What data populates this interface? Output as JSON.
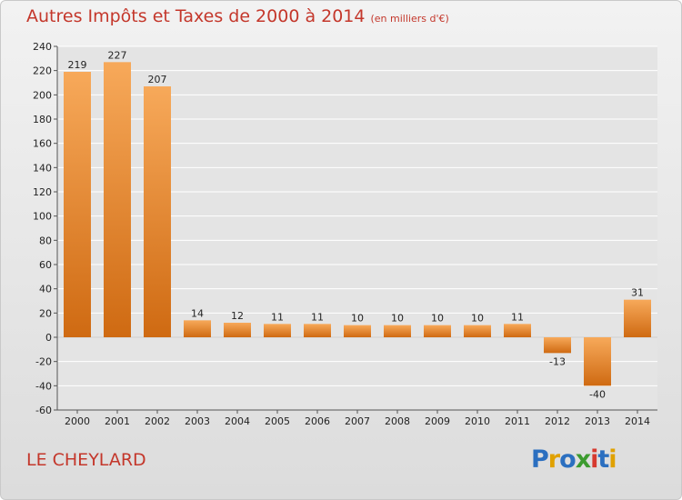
{
  "title": "Autres Impôts et Taxes de 2000 à 2014",
  "unit": "(en milliers d'€)",
  "commune": "LE CHEYLARD",
  "logo": {
    "text": "Proxiti",
    "colors": [
      "#2b6fc0",
      "#e0a100",
      "#2b6fc0",
      "#3c9b2f",
      "#d63a2f",
      "#2b6fc0",
      "#e0a100"
    ]
  },
  "colors": {
    "bar_light": "#f7a95a",
    "bar_dark": "#cf6a12",
    "grid": "#ffffff",
    "axis": "#555555"
  },
  "chart_data": {
    "type": "bar",
    "categories": [
      "2000",
      "2001",
      "2002",
      "2003",
      "2004",
      "2005",
      "2006",
      "2007",
      "2008",
      "2009",
      "2010",
      "2011",
      "2012",
      "2013",
      "2014"
    ],
    "values": [
      219,
      227,
      207,
      14,
      12,
      11,
      11,
      10,
      10,
      10,
      10,
      11,
      -13,
      -40,
      31
    ],
    "value_labels": [
      "219",
      "227",
      "207",
      "14",
      "12",
      "11",
      "11",
      "10",
      "10",
      "10",
      "10",
      "11",
      "-13",
      "-40",
      "31"
    ],
    "ylim": [
      -60,
      240
    ],
    "yticks": [
      -60,
      -40,
      -20,
      0,
      20,
      40,
      60,
      80,
      100,
      120,
      140,
      160,
      180,
      200,
      220,
      240
    ],
    "grid": true,
    "title": "Autres Impôts et Taxes de 2000 à 2014",
    "xlabel": "",
    "ylabel": ""
  }
}
